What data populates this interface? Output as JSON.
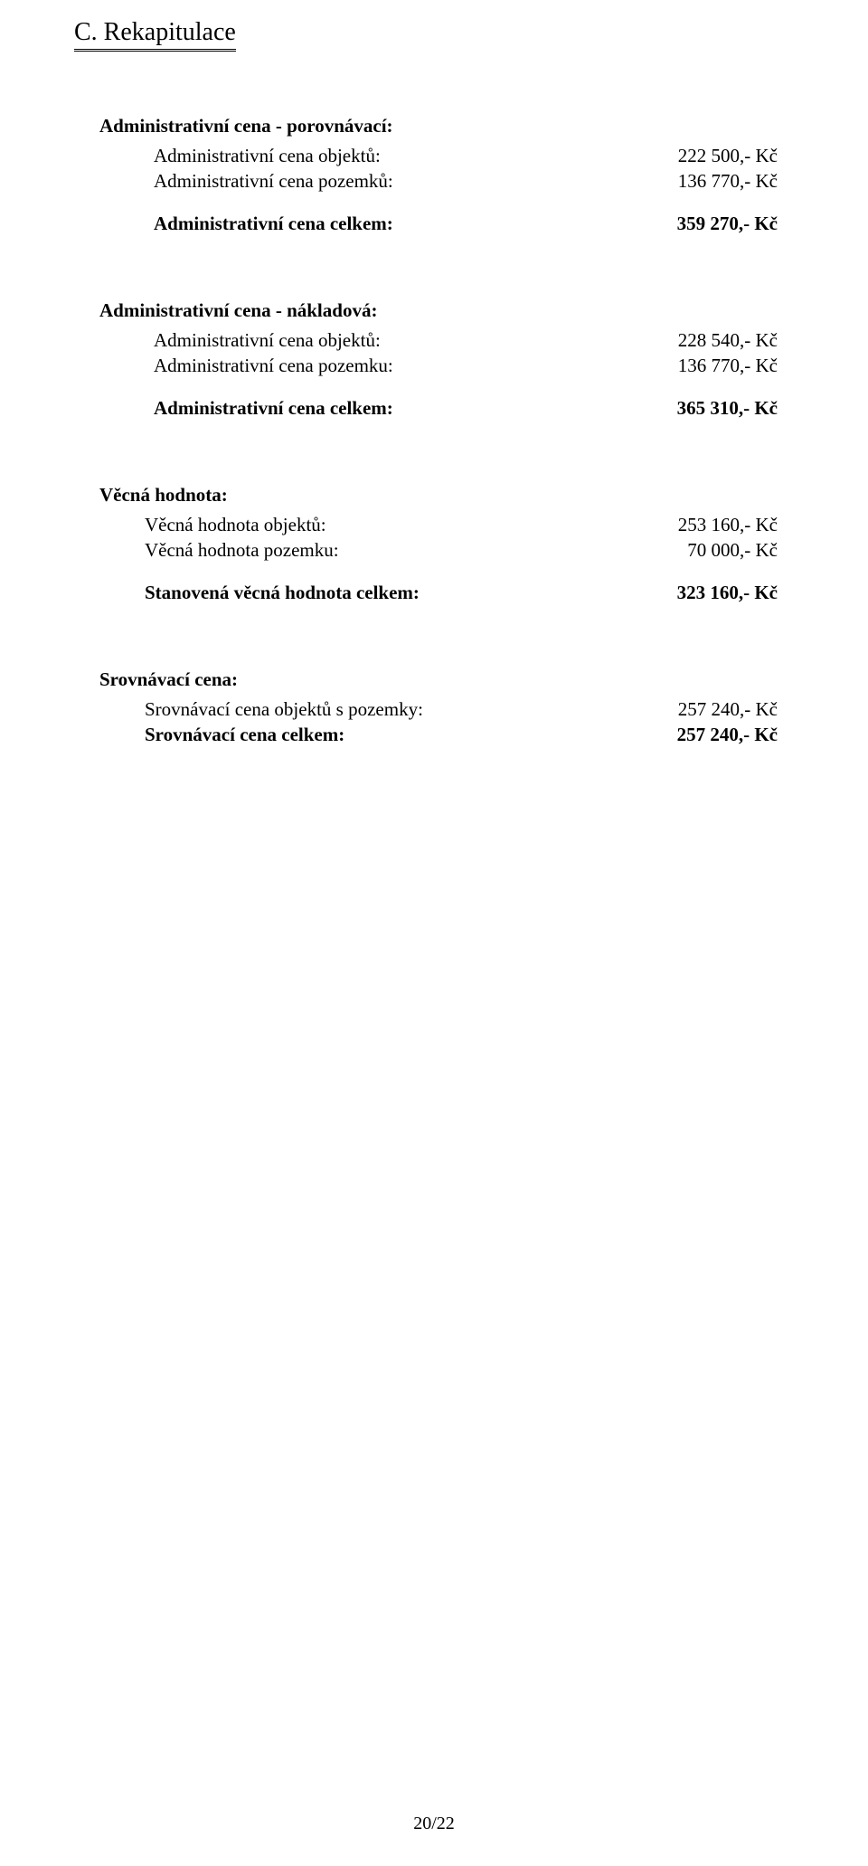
{
  "title": "C. Rekapitulace",
  "groups": [
    {
      "heading": "Administrativní cena - porovnávací:",
      "rows": [
        {
          "label": "Administrativní cena objektů:",
          "value": "222 500,- Kč",
          "bold": false,
          "indent": "a"
        },
        {
          "label": "Administrativní cena pozemků:",
          "value": "136 770,- Kč",
          "bold": false,
          "indent": "a"
        }
      ],
      "sum": {
        "label": "Administrativní cena celkem:",
        "value": "359 270,- Kč"
      },
      "sum_indent": "a"
    },
    {
      "heading": "Administrativní cena - nákladová:",
      "rows": [
        {
          "label": "Administrativní cena objektů:",
          "value": "228 540,- Kč",
          "bold": false,
          "indent": "a"
        },
        {
          "label": "Administrativní cena pozemku:",
          "value": "136 770,- Kč",
          "bold": false,
          "indent": "a"
        }
      ],
      "sum": {
        "label": "Administrativní cena celkem:",
        "value": "365 310,- Kč"
      },
      "sum_indent": "a"
    },
    {
      "heading": "Věcná hodnota:",
      "rows": [
        {
          "label": "Věcná hodnota objektů:",
          "value": "253 160,- Kč",
          "bold": false,
          "indent": "b"
        },
        {
          "label": "Věcná hodnota pozemku:",
          "value": "70 000,- Kč",
          "bold": false,
          "indent": "b"
        }
      ],
      "sum": {
        "label": "Stanovená věcná hodnota celkem:",
        "value": "323 160,- Kč"
      },
      "sum_indent": "b"
    },
    {
      "heading": "Srovnávací cena:",
      "rows": [
        {
          "label": "Srovnávací cena objektů s pozemky:",
          "value": "257 240,- Kč",
          "bold": false,
          "indent": "b"
        },
        {
          "label": "Srovnávací cena celkem:",
          "value": "257 240,- Kč",
          "bold": true,
          "indent": "b"
        }
      ],
      "sum": null
    }
  ],
  "page_number": "20/22"
}
